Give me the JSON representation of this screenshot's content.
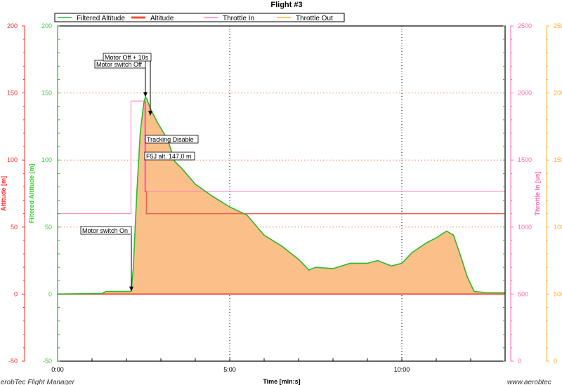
{
  "chart_data": {
    "type": "area",
    "title": "Flight #3",
    "xlabel": "Time [min:s]",
    "x_ticks": [
      "0:00",
      "5:00",
      "10:00"
    ],
    "xlim_minutes": [
      0,
      13
    ],
    "grid": "dotted, major only",
    "legend_position": "top",
    "legend": [
      {
        "name": "Filtered Altitude",
        "color": "#2db82d"
      },
      {
        "name": "Altitude",
        "color": "#f0503c"
      },
      {
        "name": "Throttle In",
        "color": "#ff7fc0"
      },
      {
        "name": "Throttle Out",
        "color": "#ffb030"
      }
    ],
    "axes": {
      "altitude": {
        "label": "Altitude [m]",
        "color": "#ff2a2a",
        "ylim": [
          -50,
          200
        ],
        "ticks": [
          "200",
          "150",
          "100",
          "50",
          "0",
          "-50"
        ]
      },
      "filtered_altitude": {
        "label": "Filtered Altitude [m]",
        "color": "#3ccc3c",
        "ylim": [
          -50,
          200
        ],
        "ticks": [
          "200",
          "150",
          "100",
          "50",
          "0",
          "-50"
        ]
      },
      "throttle_in": {
        "label": "Throttle In [us]",
        "color": "#ff66b3",
        "ylim": [
          0,
          2500
        ],
        "ticks": [
          "2500",
          "2000",
          "1500",
          "1000",
          "500",
          "0"
        ]
      },
      "throttle_out": {
        "label": "",
        "color": "#ffb030",
        "ylim": [
          0,
          2500
        ],
        "ticks": [
          "2500",
          "2000",
          "1500",
          "1000",
          "500",
          "0"
        ]
      }
    },
    "series": [
      {
        "name": "Filtered Altitude",
        "axis": "filtered_altitude",
        "x_minutes": [
          0,
          1.3,
          1.4,
          2.14,
          2.2,
          2.3,
          2.4,
          2.5,
          2.55,
          2.6,
          2.7,
          2.9,
          3.2,
          3.4,
          3.6,
          4.0,
          4.5,
          5.0,
          5.5,
          6.0,
          6.5,
          7.0,
          7.3,
          7.5,
          8.0,
          8.5,
          9.0,
          9.3,
          9.7,
          10.0,
          10.3,
          10.7,
          11.0,
          11.3,
          11.5,
          11.7,
          11.9,
          12.1,
          12.5,
          13.0
        ],
        "y": [
          0,
          0.5,
          2,
          2,
          20,
          75,
          120,
          142,
          147,
          145,
          138,
          128,
          115,
          99,
          94,
          82,
          73,
          65,
          59,
          44,
          36,
          26,
          18,
          20,
          19,
          23,
          23,
          25,
          21,
          23,
          31,
          38,
          42,
          47,
          44,
          29,
          13,
          2,
          1,
          1
        ]
      },
      {
        "name": "Altitude",
        "axis": "altitude",
        "x_minutes": [
          0,
          13
        ],
        "y": [
          0,
          0
        ]
      },
      {
        "name": "Throttle In",
        "axis": "throttle_in",
        "x_minutes": [
          0,
          2.13,
          2.13,
          2.53,
          2.53,
          13
        ],
        "y": [
          1100,
          1100,
          1940,
          1940,
          1266,
          1266
        ]
      },
      {
        "name": "Throttle Out",
        "axis": "throttle_out",
        "x_minutes": [
          2.55,
          2.55,
          2.58,
          2.58,
          13
        ],
        "y": [
          1940,
          1266,
          1266,
          1100,
          1100
        ]
      }
    ],
    "annotations": [
      {
        "text": "Motor switch On",
        "x_minutes": 2.14,
        "y": 2
      },
      {
        "text": "Motor switch Off",
        "x_minutes": 2.55,
        "y": 147
      },
      {
        "text": "Motor Off + 10s",
        "x_minutes": 2.71,
        "y": 133
      },
      {
        "text": "Tracking Disable",
        "x_minutes": 2.55,
        "y": 147
      },
      {
        "text": "F5J alt. 147,0 m",
        "x_minutes": 2.55,
        "y": 147
      }
    ]
  },
  "footer": {
    "left": "AerobTec Flight Manager",
    "right": "www.aerobtec"
  }
}
